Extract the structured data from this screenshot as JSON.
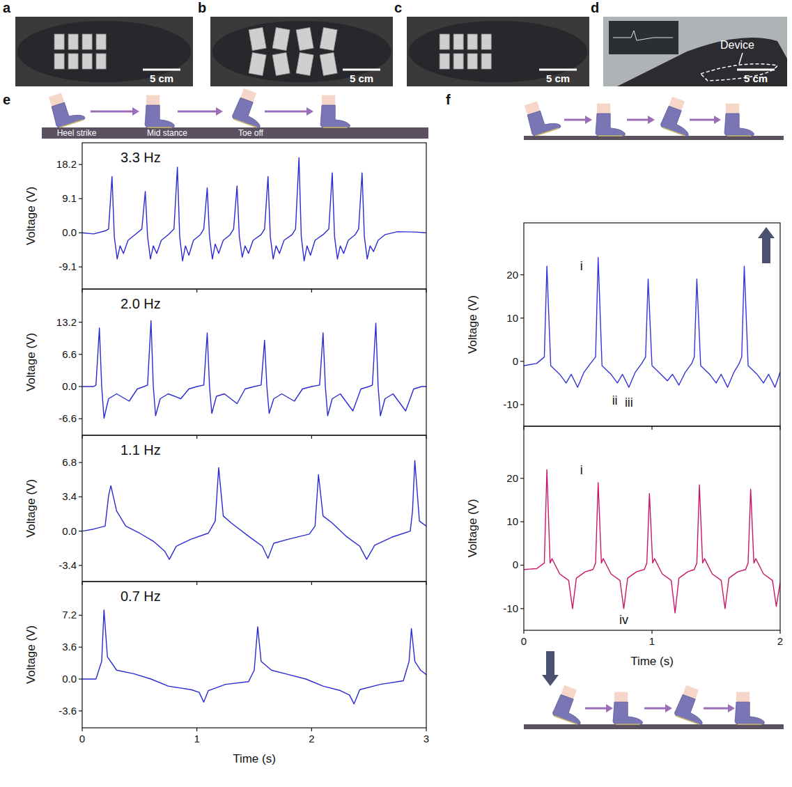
{
  "photos": [
    {
      "label": "a",
      "scale_bar": "5 cm"
    },
    {
      "label": "b",
      "scale_bar": "5 cm"
    },
    {
      "label": "c",
      "scale_bar": "5 cm"
    },
    {
      "label": "d",
      "scale_bar": "5 cm",
      "annotation": "Device"
    }
  ],
  "panel_labels": [
    "e",
    "f"
  ],
  "gait_stages": [
    "Heel strike",
    "Mid stance",
    "Toe off"
  ],
  "chart_data": [
    {
      "type": "line",
      "title": "3.3 Hz",
      "y_label": "Voltage (V)",
      "color": "#2a2ad4",
      "grid": false,
      "tick_labels": "y",
      "xlim": [
        0,
        3
      ],
      "xticks": [
        0,
        1,
        2,
        3
      ],
      "ylim": [
        -15,
        24
      ],
      "yticks": [
        -9.1,
        {
          "value": 0,
          "label": "0.0"
        },
        9.1,
        18.2
      ],
      "x": [
        0,
        0.1,
        0.2,
        0.23,
        0.26,
        0.28,
        0.305,
        0.33,
        0.36,
        0.4,
        0.46,
        0.52,
        0.55,
        0.57,
        0.595,
        0.62,
        0.65,
        0.69,
        0.75,
        0.8,
        0.83,
        0.85,
        0.875,
        0.9,
        0.93,
        0.97,
        1.03,
        1.06,
        1.09,
        1.11,
        1.135,
        1.16,
        1.19,
        1.23,
        1.29,
        1.32,
        1.35,
        1.37,
        1.395,
        1.42,
        1.45,
        1.49,
        1.56,
        1.59,
        1.62,
        1.64,
        1.665,
        1.69,
        1.72,
        1.76,
        1.83,
        1.86,
        1.89,
        1.91,
        1.935,
        1.96,
        1.99,
        2.03,
        2.1,
        2.15,
        2.18,
        2.2,
        2.225,
        2.25,
        2.28,
        2.32,
        2.38,
        2.41,
        2.44,
        2.46,
        2.485,
        2.51,
        2.54,
        2.58,
        2.64,
        2.75,
        2.9,
        3
      ],
      "values": [
        0,
        -0.3,
        0.5,
        1,
        15,
        -1,
        -7,
        -3.5,
        -5.5,
        -2,
        -0.5,
        1,
        11,
        -1,
        -7,
        -3.5,
        -5.5,
        -2,
        -0.5,
        1,
        17.5,
        -1,
        -7.5,
        -3.5,
        -6,
        -2,
        -0.5,
        1,
        12,
        -1,
        -7,
        -3,
        -5.5,
        -2,
        -0.5,
        1,
        12.5,
        -1,
        -6.5,
        -3.5,
        -5.5,
        -2,
        -0.5,
        1,
        15,
        -1,
        -7,
        -3.5,
        -5.5,
        -2,
        -0.5,
        1,
        20,
        -1,
        -7.5,
        -3.5,
        -6,
        -2,
        -0.5,
        1,
        16,
        -1,
        -7,
        -3.5,
        -5.5,
        -2,
        -0.5,
        1,
        16,
        -1,
        -7,
        -3.5,
        -5,
        -2,
        -0.5,
        0.3,
        0.2,
        0
      ]
    },
    {
      "type": "line",
      "title": "2.0 Hz",
      "y_label": "Voltage (V)",
      "color": "#2a2ad4",
      "grid": false,
      "tick_labels": "y",
      "xlim": [
        0,
        3
      ],
      "xticks": [
        0,
        1,
        2,
        3
      ],
      "ylim": [
        -10,
        20
      ],
      "yticks": [
        -6.6,
        {
          "value": 0,
          "label": "0.0"
        },
        6.6,
        13.2
      ],
      "x": [
        0,
        0.1,
        0.12,
        0.15,
        0.17,
        0.19,
        0.23,
        0.3,
        0.41,
        0.48,
        0.54,
        0.57,
        0.6,
        0.62,
        0.64,
        0.68,
        0.75,
        0.86,
        0.93,
        1,
        1.06,
        1.09,
        1.11,
        1.13,
        1.17,
        1.24,
        1.35,
        1.42,
        1.5,
        1.56,
        1.59,
        1.61,
        1.63,
        1.67,
        1.74,
        1.85,
        1.92,
        2,
        2.07,
        2.1,
        2.12,
        2.14,
        2.18,
        2.25,
        2.36,
        2.43,
        2.5,
        2.53,
        2.56,
        2.58,
        2.6,
        2.64,
        2.71,
        2.82,
        2.89,
        2.96,
        3
      ],
      "values": [
        0,
        0,
        0.3,
        12,
        0,
        -6.5,
        -2.5,
        -1.5,
        -3,
        -0.5,
        0,
        0.3,
        13.5,
        0,
        -6,
        -2.5,
        -1.5,
        -2.5,
        -0.5,
        0,
        0.3,
        11,
        0,
        -5.5,
        -2,
        -1.5,
        -3.5,
        -0.5,
        0,
        0.3,
        9.5,
        0,
        -5.5,
        -2.5,
        -1.5,
        -3,
        -0.5,
        0,
        0.3,
        11,
        0,
        -6,
        -2.5,
        -1.5,
        -5,
        -0.5,
        0,
        0.3,
        13,
        0,
        -6,
        -2.5,
        -1.5,
        -5,
        -0.5,
        0,
        0
      ]
    },
    {
      "type": "line",
      "title": "1.1 Hz",
      "y_label": "Voltage (V)",
      "color": "#2a2ad4",
      "grid": false,
      "tick_labels": "y",
      "xlim": [
        0,
        3
      ],
      "xticks": [
        0,
        1,
        2,
        3
      ],
      "ylim": [
        -5,
        9.5
      ],
      "yticks": [
        -3.4,
        {
          "value": 0,
          "label": "0.0"
        },
        3.4,
        6.8
      ],
      "x": [
        0,
        0.1,
        0.2,
        0.23,
        0.25,
        0.3,
        0.38,
        0.5,
        0.62,
        0.72,
        0.76,
        0.82,
        0.95,
        1.1,
        1.16,
        1.19,
        1.23,
        1.3,
        1.45,
        1.57,
        1.62,
        1.67,
        1.8,
        1.98,
        2.03,
        2.06,
        2.1,
        2.18,
        2.3,
        2.42,
        2.48,
        2.55,
        2.7,
        2.86,
        2.88,
        2.9,
        2.94,
        3
      ],
      "values": [
        0,
        0.2,
        0.5,
        3.5,
        4.5,
        2,
        0.5,
        -0.2,
        -1,
        -2,
        -2.8,
        -1.5,
        -0.8,
        -0.2,
        1,
        6.3,
        1.5,
        0.8,
        -0.5,
        -1.5,
        -2.7,
        -1.2,
        -0.8,
        -0.3,
        0.5,
        5.6,
        1.5,
        0.8,
        -0.5,
        -1.5,
        -2.8,
        -1.4,
        -0.6,
        0,
        2,
        7,
        1,
        0.5
      ]
    },
    {
      "type": "line",
      "title": "0.7 Hz",
      "x_label": "Time (s)",
      "y_label": "Voltage (V)",
      "color": "#2a2ad4",
      "grid": false,
      "tick_labels": true,
      "xlim": [
        0,
        3
      ],
      "xticks": [
        0,
        1,
        2,
        3
      ],
      "ylim": [
        -5.5,
        11
      ],
      "yticks": [
        -3.6,
        {
          "value": 0,
          "label": "0.0"
        },
        3.6,
        7.2
      ],
      "x": [
        0,
        0.12,
        0.17,
        0.19,
        0.22,
        0.3,
        0.45,
        0.6,
        0.75,
        0.95,
        1.02,
        1.06,
        1.1,
        1.25,
        1.45,
        1.5,
        1.53,
        1.56,
        1.65,
        1.8,
        1.95,
        2.1,
        2.25,
        2.33,
        2.37,
        2.42,
        2.6,
        2.8,
        2.85,
        2.87,
        2.9,
        2.95,
        3
      ],
      "values": [
        0,
        0,
        2,
        7.8,
        2.5,
        1,
        0.6,
        0,
        -0.8,
        -1.2,
        -1.5,
        -2.6,
        -1.3,
        -0.6,
        -0.3,
        1,
        5.9,
        2,
        1,
        0.5,
        0,
        -0.8,
        -1.3,
        -1.8,
        -2.8,
        -1.2,
        -0.6,
        -0.2,
        2,
        5.7,
        2,
        1,
        0.5
      ]
    },
    {
      "type": "line",
      "y_label": "Voltage (V)",
      "color": "#3434da",
      "grid": false,
      "tick_labels": "y",
      "xlim": [
        0,
        2
      ],
      "xticks": [
        0,
        1,
        2
      ],
      "ylim": [
        -15,
        32
      ],
      "yticks": [
        -10,
        0,
        10,
        20
      ],
      "annotations": [
        {
          "text": "i",
          "x": 0.45,
          "y": 21
        },
        {
          "text": "ii",
          "x": 0.71,
          "y": -10
        },
        {
          "text": "iii",
          "x": 0.82,
          "y": -10.5
        }
      ],
      "x": [
        0,
        0.1,
        0.16,
        0.18,
        0.21,
        0.28,
        0.33,
        0.37,
        0.42,
        0.47,
        0.52,
        0.56,
        0.58,
        0.61,
        0.68,
        0.73,
        0.77,
        0.82,
        0.87,
        0.92,
        0.95,
        0.97,
        1,
        1.07,
        1.12,
        1.16,
        1.21,
        1.26,
        1.31,
        1.33,
        1.35,
        1.38,
        1.45,
        1.5,
        1.54,
        1.59,
        1.64,
        1.68,
        1.7,
        1.72,
        1.75,
        1.82,
        1.87,
        1.91,
        1.96,
        2
      ],
      "values": [
        -1,
        -0.5,
        1,
        22,
        -1,
        -3,
        -5,
        -3,
        -6,
        -2.5,
        -0.5,
        1,
        24,
        -1,
        -3,
        -5,
        -3,
        -6,
        -2.5,
        -0.5,
        1,
        19,
        -1,
        -3,
        -4.5,
        -3,
        -5.5,
        -2.5,
        -0.5,
        1,
        19,
        -1,
        -3,
        -5,
        -3,
        -6,
        -2.5,
        -0.5,
        1,
        22,
        -1,
        -3,
        -5,
        -3,
        -6,
        -2.5
      ]
    },
    {
      "type": "line",
      "x_label": "Time (s)",
      "y_label": "Voltage (V)",
      "color": "#c8176a",
      "grid": false,
      "tick_labels": true,
      "xlim": [
        0,
        2
      ],
      "xticks": [
        0,
        1,
        2
      ],
      "ylim": [
        -15,
        32
      ],
      "yticks": [
        -10,
        0,
        10,
        20
      ],
      "annotations": [
        {
          "text": "i",
          "x": 0.45,
          "y": 21
        },
        {
          "text": "iv",
          "x": 0.78,
          "y": -13.5
        }
      ],
      "x": [
        0,
        0.1,
        0.16,
        0.18,
        0.205,
        0.22,
        0.28,
        0.35,
        0.38,
        0.41,
        0.48,
        0.54,
        0.56,
        0.58,
        0.605,
        0.62,
        0.68,
        0.75,
        0.78,
        0.81,
        0.88,
        0.94,
        0.96,
        0.98,
        1.005,
        1.02,
        1.08,
        1.15,
        1.18,
        1.21,
        1.28,
        1.33,
        1.35,
        1.37,
        1.395,
        1.41,
        1.47,
        1.54,
        1.57,
        1.6,
        1.67,
        1.73,
        1.75,
        1.77,
        1.795,
        1.81,
        1.87,
        1.94,
        1.97,
        2
      ],
      "values": [
        -1,
        -0.8,
        0.5,
        22,
        0.5,
        1.5,
        -2,
        -3.5,
        -10,
        -3,
        -1.5,
        -1,
        0.5,
        19,
        0.5,
        1.5,
        -2,
        -3.5,
        -10,
        -3,
        -1.5,
        -1,
        0.5,
        16.5,
        0.5,
        1.5,
        -2,
        -3.5,
        -11,
        -3,
        -1.5,
        -1,
        0.5,
        18.5,
        0.5,
        1.5,
        -2,
        -3.5,
        -10,
        -3,
        -1.5,
        -1,
        0.5,
        17.5,
        0.5,
        1.5,
        -2,
        -3.5,
        -9.5,
        -4
      ]
    }
  ]
}
